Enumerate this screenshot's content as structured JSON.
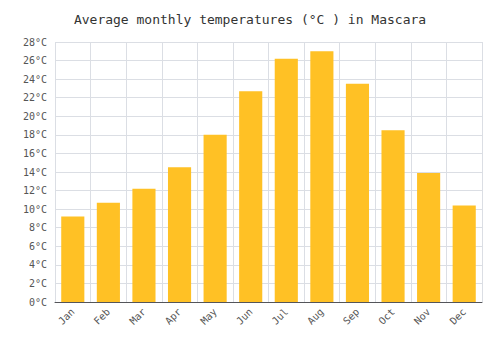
{
  "chart_data": {
    "type": "bar",
    "title": "Average monthly temperatures (°C ) in Mascara",
    "categories": [
      "Jan",
      "Feb",
      "Mar",
      "Apr",
      "May",
      "Jun",
      "Jul",
      "Aug",
      "Sep",
      "Oct",
      "Nov",
      "Dec"
    ],
    "values": [
      9.2,
      10.7,
      12.2,
      14.5,
      18.0,
      22.7,
      26.2,
      27.0,
      23.5,
      18.5,
      13.9,
      10.4
    ],
    "color": "#FFC125",
    "ylim": [
      0,
      28
    ],
    "yticks": [
      {
        "value": 0,
        "label": "0°C"
      },
      {
        "value": 2,
        "label": "2°C"
      },
      {
        "value": 4,
        "label": "4°C"
      },
      {
        "value": 6,
        "label": "6°C"
      },
      {
        "value": 8,
        "label": "8°C"
      },
      {
        "value": 10,
        "label": "10°C"
      },
      {
        "value": 12,
        "label": "12°C"
      },
      {
        "value": 14,
        "label": "14°C"
      },
      {
        "value": 16,
        "label": "16°C"
      },
      {
        "value": 18,
        "label": "18°C"
      },
      {
        "value": 20,
        "label": "20°C"
      },
      {
        "value": 22,
        "label": "22°C"
      },
      {
        "value": 24,
        "label": "24°C"
      },
      {
        "value": 26,
        "label": "26°C"
      },
      {
        "value": 28,
        "label": "28°C"
      }
    ],
    "grid": true
  }
}
